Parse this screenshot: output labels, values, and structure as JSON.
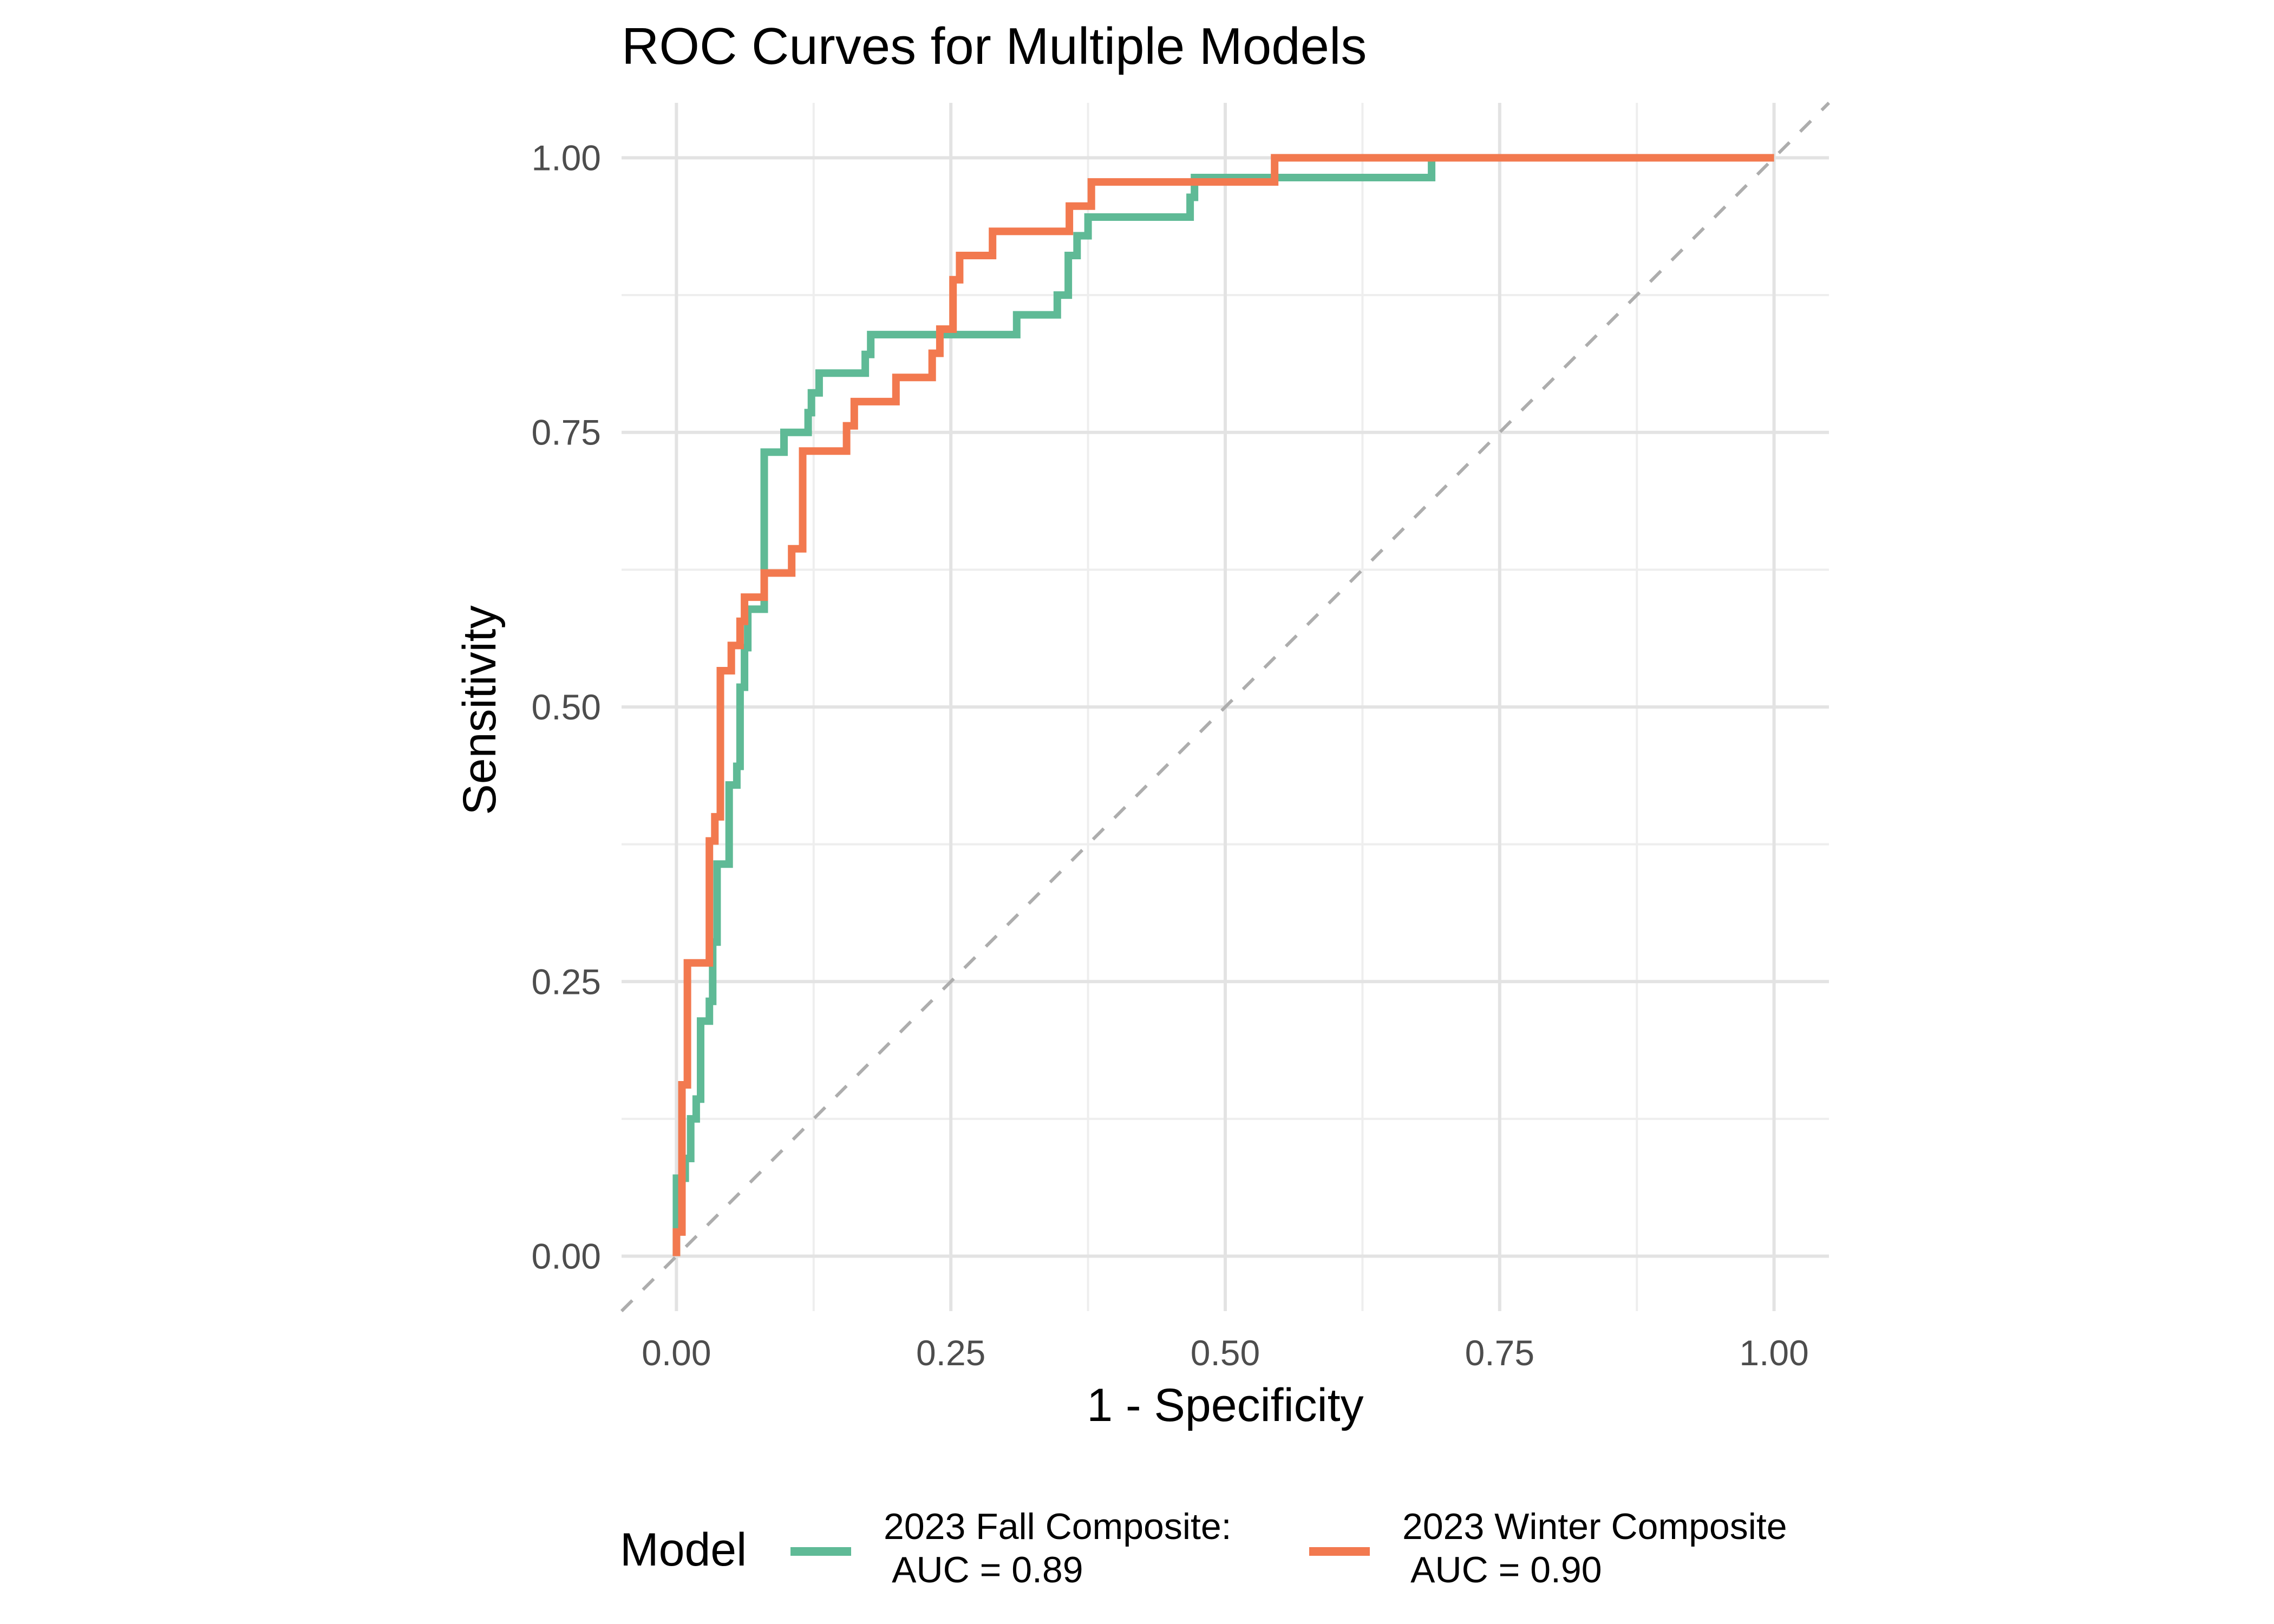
{
  "chart_data": {
    "type": "line",
    "title": "ROC Curves for Multiple Models",
    "xlabel": "1 - Specificity",
    "ylabel": "Sensitivity",
    "xlim": [
      -0.05,
      1.05
    ],
    "ylim": [
      -0.05,
      1.05
    ],
    "x_ticks": [
      "0.00",
      "0.25",
      "0.50",
      "0.75",
      "1.00"
    ],
    "y_ticks": [
      "0.00",
      "0.25",
      "0.50",
      "0.75",
      "1.00"
    ],
    "grid": true,
    "reference_line": "diagonal-dashed",
    "legend": {
      "title": "Model",
      "position": "bottom"
    },
    "series": [
      {
        "name": "2023 Fall Composite:\n AUC = 0.89",
        "color": "#5fba96",
        "points": [
          [
            0.0,
            0.0
          ],
          [
            0.0,
            0.071
          ],
          [
            0.008,
            0.071
          ],
          [
            0.008,
            0.089
          ],
          [
            0.013,
            0.089
          ],
          [
            0.013,
            0.125
          ],
          [
            0.018,
            0.125
          ],
          [
            0.018,
            0.143
          ],
          [
            0.022,
            0.143
          ],
          [
            0.022,
            0.214
          ],
          [
            0.03,
            0.214
          ],
          [
            0.03,
            0.232
          ],
          [
            0.033,
            0.232
          ],
          [
            0.033,
            0.286
          ],
          [
            0.037,
            0.286
          ],
          [
            0.037,
            0.357
          ],
          [
            0.048,
            0.357
          ],
          [
            0.048,
            0.429
          ],
          [
            0.055,
            0.429
          ],
          [
            0.055,
            0.446
          ],
          [
            0.058,
            0.446
          ],
          [
            0.058,
            0.518
          ],
          [
            0.062,
            0.518
          ],
          [
            0.062,
            0.554
          ],
          [
            0.065,
            0.554
          ],
          [
            0.065,
            0.589
          ],
          [
            0.08,
            0.589
          ],
          [
            0.08,
            0.732
          ],
          [
            0.098,
            0.732
          ],
          [
            0.098,
            0.75
          ],
          [
            0.12,
            0.75
          ],
          [
            0.12,
            0.768
          ],
          [
            0.123,
            0.768
          ],
          [
            0.123,
            0.786
          ],
          [
            0.13,
            0.786
          ],
          [
            0.13,
            0.804
          ],
          [
            0.172,
            0.804
          ],
          [
            0.172,
            0.821
          ],
          [
            0.177,
            0.821
          ],
          [
            0.177,
            0.839
          ],
          [
            0.31,
            0.839
          ],
          [
            0.31,
            0.857
          ],
          [
            0.347,
            0.857
          ],
          [
            0.347,
            0.875
          ],
          [
            0.357,
            0.875
          ],
          [
            0.357,
            0.911
          ],
          [
            0.365,
            0.911
          ],
          [
            0.365,
            0.929
          ],
          [
            0.375,
            0.929
          ],
          [
            0.375,
            0.946
          ],
          [
            0.468,
            0.946
          ],
          [
            0.468,
            0.964
          ],
          [
            0.472,
            0.964
          ],
          [
            0.472,
            0.982
          ],
          [
            0.688,
            0.982
          ],
          [
            0.688,
            1.0
          ],
          [
            1.0,
            1.0
          ]
        ]
      },
      {
        "name": "2023 Winter Composite\n AUC = 0.90",
        "color": "#f2794f",
        "points": [
          [
            0.0,
            0.0
          ],
          [
            0.0,
            0.022
          ],
          [
            0.005,
            0.022
          ],
          [
            0.005,
            0.156
          ],
          [
            0.01,
            0.156
          ],
          [
            0.01,
            0.267
          ],
          [
            0.03,
            0.267
          ],
          [
            0.03,
            0.378
          ],
          [
            0.035,
            0.378
          ],
          [
            0.035,
            0.4
          ],
          [
            0.04,
            0.4
          ],
          [
            0.04,
            0.533
          ],
          [
            0.05,
            0.533
          ],
          [
            0.05,
            0.556
          ],
          [
            0.058,
            0.556
          ],
          [
            0.058,
            0.578
          ],
          [
            0.062,
            0.578
          ],
          [
            0.062,
            0.6
          ],
          [
            0.08,
            0.6
          ],
          [
            0.08,
            0.622
          ],
          [
            0.105,
            0.622
          ],
          [
            0.105,
            0.644
          ],
          [
            0.115,
            0.644
          ],
          [
            0.115,
            0.733
          ],
          [
            0.155,
            0.733
          ],
          [
            0.155,
            0.756
          ],
          [
            0.162,
            0.756
          ],
          [
            0.162,
            0.778
          ],
          [
            0.2,
            0.778
          ],
          [
            0.2,
            0.8
          ],
          [
            0.233,
            0.8
          ],
          [
            0.233,
            0.822
          ],
          [
            0.24,
            0.822
          ],
          [
            0.24,
            0.844
          ],
          [
            0.252,
            0.844
          ],
          [
            0.252,
            0.889
          ],
          [
            0.258,
            0.889
          ],
          [
            0.258,
            0.911
          ],
          [
            0.288,
            0.911
          ],
          [
            0.288,
            0.933
          ],
          [
            0.358,
            0.933
          ],
          [
            0.358,
            0.956
          ],
          [
            0.378,
            0.956
          ],
          [
            0.378,
            0.978
          ],
          [
            0.545,
            0.978
          ],
          [
            0.545,
            1.0
          ],
          [
            1.0,
            1.0
          ]
        ]
      }
    ]
  }
}
